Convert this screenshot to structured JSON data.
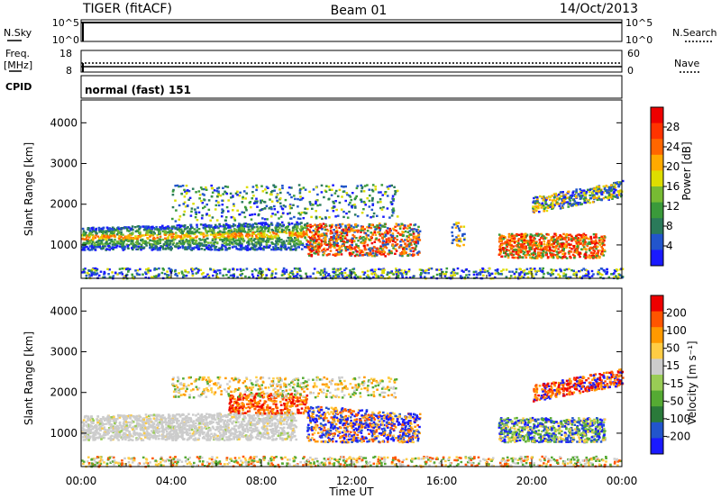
{
  "header": {
    "station": "TIGER (fitACF)",
    "beam": "Beam 01",
    "date": "14/Oct/2013"
  },
  "top_panels": {
    "nsky_label": "N.Sky",
    "nsky_ticks": [
      "10^5",
      "10^0"
    ],
    "nsearch_label": "N.Search",
    "nsearch_ticks": [
      "10^5",
      "10^0"
    ],
    "freq_label_1": "Freq.",
    "freq_label_2": "[MHz]",
    "freq_ticks": [
      "18",
      "8"
    ],
    "nave_label": "Nave",
    "nave_ticks": [
      "60",
      "0"
    ],
    "cpid_label": "CPID",
    "cpid_value": "normal (fast) 151"
  },
  "chart_data": [
    {
      "type": "heatmap",
      "name": "power",
      "ylabel": "Slant Range [km]",
      "ylim": [
        180,
        4560
      ],
      "yticks": [
        "4000",
        "3000",
        "2000",
        "1000"
      ],
      "xlim": [
        "00:00",
        "24:00"
      ],
      "colorbar_label": "Power [dB]",
      "colorbar_ticks": [
        "28",
        "24",
        "20",
        "16",
        "12",
        "8",
        "4"
      ],
      "colorbar_colors": [
        "#1a1aff",
        "#2255cc",
        "#2a7a5a",
        "#3a9a3a",
        "#77bb33",
        "#dddd00",
        "#ffaa00",
        "#ff6600",
        "#ff3300",
        "#ee0000"
      ]
    },
    {
      "type": "heatmap",
      "name": "velocity",
      "ylabel": "Slant Range [km]",
      "ylim": [
        180,
        4560
      ],
      "yticks": [
        "4000",
        "3000",
        "2000",
        "1000"
      ],
      "xlim": [
        "00:00",
        "24:00"
      ],
      "colorbar_label": "Velocity [m s⁻¹]",
      "colorbar_ticks": [
        "200",
        "100",
        "50",
        "15",
        "-15",
        "-50",
        "-100",
        "-200"
      ],
      "colorbar_colors": [
        "#1a1aff",
        "#2255cc",
        "#2a7a3a",
        "#55aa33",
        "#99cc55",
        "#cccccc",
        "#ffcc44",
        "#ff9900",
        "#ff5500",
        "#ee0000"
      ]
    }
  ],
  "x_axis": {
    "ticks": [
      "00:00",
      "04:00",
      "08:00",
      "12:00",
      "16:00",
      "20:00",
      "00:00"
    ],
    "label": "Time UT"
  }
}
